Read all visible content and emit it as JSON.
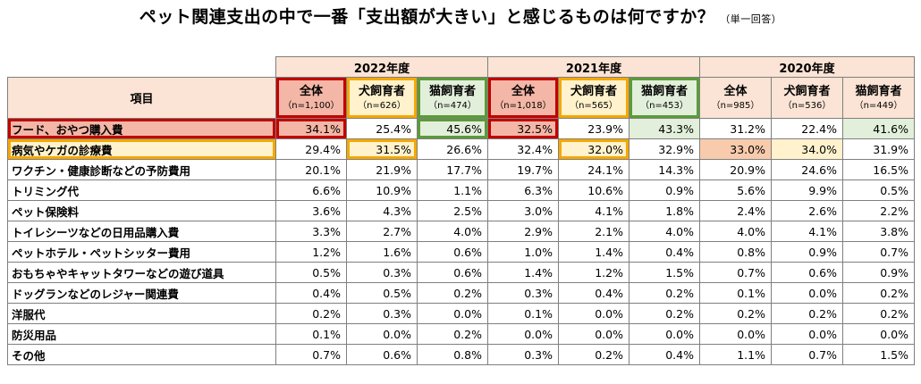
{
  "title": "ペット関連支出の中で一番「支出額が大きい」と感じるものは何ですか？",
  "title_note": "（単一回答）",
  "header": {
    "item_label": "項目",
    "years": [
      "2022年度",
      "2021年度",
      "2020年度"
    ],
    "groups": [
      {
        "label": "全体",
        "n": "（n=1,100）"
      },
      {
        "label": "犬飼育者",
        "n": "（n=626）"
      },
      {
        "label": "猫飼育者",
        "n": "（n=474）"
      },
      {
        "label": "全体",
        "n": "（n=1,018）"
      },
      {
        "label": "犬飼育者",
        "n": "（n=565）"
      },
      {
        "label": "猫飼育者",
        "n": "（n=453）"
      },
      {
        "label": "全体",
        "n": "（n=985）"
      },
      {
        "label": "犬飼育者",
        "n": "（n=536）"
      },
      {
        "label": "猫飼育者",
        "n": "（n=449）"
      }
    ]
  },
  "rows": [
    {
      "label": "フード、おやつ購入費",
      "values": [
        "34.1%",
        "25.4%",
        "45.6%",
        "32.5%",
        "23.9%",
        "43.3%",
        "31.2%",
        "22.4%",
        "41.6%"
      ]
    },
    {
      "label": "病気やケガの診療費",
      "values": [
        "29.4%",
        "31.5%",
        "26.6%",
        "32.4%",
        "32.0%",
        "32.9%",
        "33.0%",
        "34.0%",
        "31.9%"
      ]
    },
    {
      "label": "ワクチン・健康診断などの予防費用",
      "values": [
        "20.1%",
        "21.9%",
        "17.7%",
        "19.7%",
        "24.1%",
        "14.3%",
        "20.9%",
        "24.6%",
        "16.5%"
      ]
    },
    {
      "label": "トリミング代",
      "values": [
        "6.6%",
        "10.9%",
        "1.1%",
        "6.3%",
        "10.6%",
        "0.9%",
        "5.6%",
        "9.9%",
        "0.5%"
      ]
    },
    {
      "label": "ペット保険料",
      "values": [
        "3.6%",
        "4.3%",
        "2.5%",
        "3.0%",
        "4.1%",
        "1.8%",
        "2.4%",
        "2.6%",
        "2.2%"
      ]
    },
    {
      "label": "トイレシーツなどの日用品購入費",
      "values": [
        "3.3%",
        "2.7%",
        "4.0%",
        "2.9%",
        "2.1%",
        "4.0%",
        "4.0%",
        "4.1%",
        "3.8%"
      ]
    },
    {
      "label": "ペットホテル・ペットシッター費用",
      "values": [
        "1.2%",
        "1.6%",
        "0.6%",
        "1.0%",
        "1.4%",
        "0.4%",
        "0.8%",
        "0.9%",
        "0.7%"
      ]
    },
    {
      "label": "おもちゃやキャットタワーなどの遊び道具",
      "values": [
        "0.5%",
        "0.3%",
        "0.6%",
        "1.4%",
        "1.2%",
        "1.5%",
        "0.7%",
        "0.6%",
        "0.9%"
      ]
    },
    {
      "label": "ドッグランなどのレジャー関連費",
      "values": [
        "0.4%",
        "0.5%",
        "0.2%",
        "0.3%",
        "0.4%",
        "0.2%",
        "0.1%",
        "0.0%",
        "0.2%"
      ]
    },
    {
      "label": "洋服代",
      "values": [
        "0.2%",
        "0.3%",
        "0.0%",
        "0.1%",
        "0.0%",
        "0.2%",
        "0.2%",
        "0.2%",
        "0.2%"
      ]
    },
    {
      "label": "防災用品",
      "values": [
        "0.1%",
        "0.0%",
        "0.2%",
        "0.0%",
        "0.0%",
        "0.0%",
        "0.0%",
        "0.0%",
        "0.0%"
      ]
    },
    {
      "label": "その他",
      "values": [
        "0.7%",
        "0.6%",
        "0.8%",
        "0.3%",
        "0.2%",
        "0.4%",
        "1.1%",
        "0.7%",
        "1.5%"
      ]
    }
  ],
  "colors": {
    "header_bg": "#fbe4d5",
    "highlight_red": "#c00000",
    "highlight_orange": "#f5a800",
    "highlight_green": "#5b9b3a"
  },
  "chart_data": {
    "type": "table",
    "title": "ペット関連支出の中で一番「支出額が大きい」と感じるものは何ですか？",
    "columns": [
      "2022年度 全体",
      "2022年度 犬飼育者",
      "2022年度 猫飼育者",
      "2021年度 全体",
      "2021年度 犬飼育者",
      "2021年度 猫飼育者",
      "2020年度 全体",
      "2020年度 犬飼育者",
      "2020年度 猫飼育者"
    ],
    "categories": [
      "フード、おやつ購入費",
      "病気やケガの診療費",
      "ワクチン・健康診断などの予防費用",
      "トリミング代",
      "ペット保険料",
      "トイレシーツなどの日用品購入費",
      "ペットホテル・ペットシッター費用",
      "おもちゃやキャットタワーなどの遊び道具",
      "ドッグランなどのレジャー関連費",
      "洋服代",
      "防災用品",
      "その他"
    ],
    "unit": "%"
  }
}
